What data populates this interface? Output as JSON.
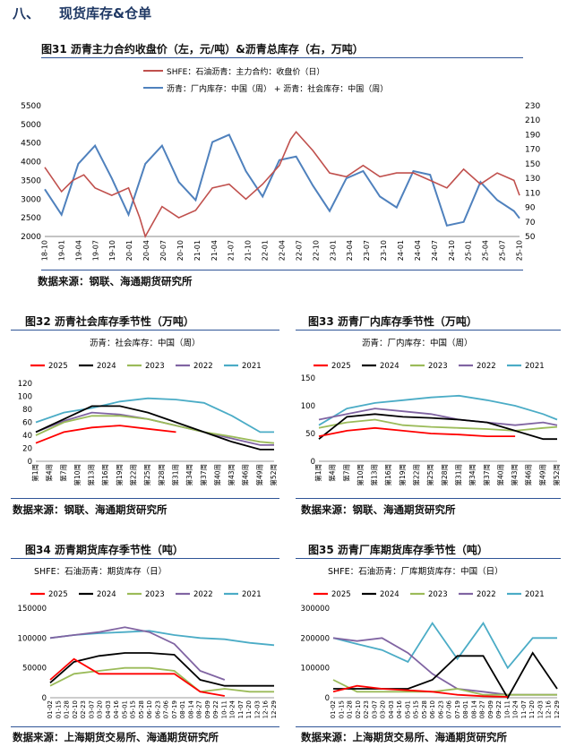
{
  "section": {
    "number": "八、",
    "title": "现货库存&仓单"
  },
  "figures": [
    {
      "id": "fig31",
      "caption": "图31  沥青主力合约收盘价（左，元/吨）&沥青总库存（右，万吨）",
      "source": "数据来源：钢联、海通期货研究所"
    },
    {
      "id": "fig32",
      "caption": "图32  沥青社会库存季节性（万吨）",
      "source": "数据来源：钢联、海通期货研究所"
    },
    {
      "id": "fig33",
      "caption": "图33  沥青厂内库存季节性（万吨）",
      "source": "数据来源：钢联、海通期货研究所"
    },
    {
      "id": "fig34",
      "caption": "图34  沥青期货库存季节性（吨）",
      "source": "数据来源：上海期货交易所、海通期货研究所"
    },
    {
      "id": "fig35",
      "caption": "图35  沥青厂库期货库存季节性（吨）",
      "source": "数据来源：上海期货交易所、海通期货研究所"
    }
  ],
  "colors": {
    "y2025": "#ff0000",
    "y2024": "#000000",
    "y2023": "#9bbb59",
    "y2022": "#8064a2",
    "y2021": "#4bacc6",
    "price": "#c0504d",
    "inventory": "#4f81bd",
    "rule": "#2f5496"
  },
  "chart_data": [
    {
      "id": "fig31",
      "type": "line",
      "series": [
        {
          "name": "SHFE：石油沥青：主力合约：收盘价（日）",
          "axis": "left",
          "x": [
            "2018-10",
            "2019-01",
            "2019-03",
            "2019-05",
            "2019-07",
            "2019-10",
            "2020-01",
            "2020-03",
            "2020-04",
            "2020-07",
            "2020-10",
            "2021-01",
            "2021-04",
            "2021-07",
            "2021-10",
            "2022-01",
            "2022-04",
            "2022-06",
            "2022-07",
            "2022-10",
            "2023-01",
            "2023-04",
            "2023-07",
            "2023-10",
            "2024-01",
            "2024-04",
            "2024-07",
            "2024-10",
            "2025-01",
            "2025-04",
            "2025-07",
            "2025-10",
            "2025-11"
          ],
          "values": [
            3850,
            3200,
            3500,
            3650,
            3300,
            3100,
            3300,
            2500,
            2000,
            2800,
            2500,
            2700,
            3300,
            3400,
            3000,
            3400,
            3900,
            4600,
            4800,
            4300,
            3700,
            3600,
            3900,
            3600,
            3700,
            3700,
            3500,
            3300,
            3800,
            3400,
            3700,
            3500,
            3100
          ]
        },
        {
          "name": "沥青：厂内库存：中国（周） + 沥青：社会库存：中国（周）",
          "axis": "right",
          "x": [
            "2018-10",
            "2019-01",
            "2019-04",
            "2019-07",
            "2019-10",
            "2020-01",
            "2020-04",
            "2020-07",
            "2020-10",
            "2021-01",
            "2021-04",
            "2021-07",
            "2021-10",
            "2022-01",
            "2022-04",
            "2022-07",
            "2022-10",
            "2023-01",
            "2023-04",
            "2023-07",
            "2023-10",
            "2024-01",
            "2024-04",
            "2024-07",
            "2024-10",
            "2025-01",
            "2025-04",
            "2025-07",
            "2025-10",
            "2025-11"
          ],
          "values": [
            115,
            80,
            150,
            175,
            130,
            80,
            150,
            175,
            125,
            100,
            180,
            190,
            140,
            105,
            155,
            160,
            120,
            85,
            130,
            140,
            105,
            90,
            140,
            135,
            65,
            70,
            125,
            100,
            85,
            75
          ]
        }
      ],
      "left_ylim": [
        2000,
        5500
      ],
      "left_ticks": [
        2000,
        2500,
        3000,
        3500,
        4000,
        4500,
        5000,
        5500
      ],
      "right_ylim": [
        50,
        230
      ],
      "right_ticks": [
        50,
        70,
        90,
        110,
        130,
        150,
        170,
        190,
        210,
        230
      ],
      "x_ticks": [
        "18-10",
        "19-01",
        "19-04",
        "19-07",
        "19-10",
        "20-01",
        "20-04",
        "20-07",
        "20-10",
        "21-01",
        "21-04",
        "21-07",
        "21-10",
        "22-01",
        "22-04",
        "22-07",
        "22-10",
        "23-01",
        "23-04",
        "23-07",
        "23-10",
        "24-01",
        "24-04",
        "24-07",
        "24-10",
        "25-01",
        "25-04",
        "25-07",
        "25-10"
      ]
    },
    {
      "id": "fig32",
      "type": "line",
      "subtitle": "沥青：社会库存：中国（周）",
      "x": [
        1,
        7,
        13,
        19,
        25,
        31,
        37,
        43,
        49,
        52
      ],
      "series": [
        {
          "name": "2025",
          "values": [
            28,
            45,
            52,
            55,
            50,
            45,
            null,
            null,
            null,
            null
          ]
        },
        {
          "name": "2024",
          "values": [
            45,
            65,
            85,
            85,
            75,
            60,
            45,
            30,
            18,
            18
          ]
        },
        {
          "name": "2023",
          "values": [
            40,
            60,
            70,
            70,
            65,
            55,
            45,
            38,
            30,
            28
          ]
        },
        {
          "name": "2022",
          "values": [
            45,
            62,
            75,
            72,
            65,
            55,
            45,
            35,
            25,
            25
          ]
        },
        {
          "name": "2021",
          "values": [
            60,
            75,
            82,
            92,
            97,
            95,
            90,
            70,
            45,
            45
          ]
        }
      ],
      "ylim": [
        0,
        120
      ],
      "y_ticks": [
        0,
        20,
        40,
        60,
        80,
        100,
        120
      ],
      "x_ticks": [
        "第1周",
        "第4周",
        "第7周",
        "第10周",
        "第13周",
        "第16周",
        "第19周",
        "第22周",
        "第25周",
        "第28周",
        "第31周",
        "第34周",
        "第37周",
        "第40周",
        "第43周",
        "第46周",
        "第49周",
        "第52周"
      ]
    },
    {
      "id": "fig33",
      "type": "line",
      "subtitle": "沥青：厂内库存：中国（周）",
      "x": [
        1,
        7,
        13,
        19,
        25,
        31,
        37,
        43,
        49,
        52
      ],
      "series": [
        {
          "name": "2025",
          "values": [
            45,
            55,
            60,
            55,
            50,
            48,
            45,
            45,
            null,
            null
          ]
        },
        {
          "name": "2024",
          "values": [
            40,
            80,
            85,
            80,
            78,
            75,
            70,
            55,
            40,
            40
          ]
        },
        {
          "name": "2023",
          "values": [
            60,
            70,
            75,
            65,
            62,
            60,
            58,
            55,
            60,
            62
          ]
        },
        {
          "name": "2022",
          "values": [
            75,
            85,
            95,
            90,
            85,
            75,
            70,
            65,
            70,
            65
          ]
        },
        {
          "name": "2021",
          "values": [
            65,
            95,
            105,
            110,
            115,
            118,
            110,
            100,
            85,
            75
          ]
        }
      ],
      "ylim": [
        0,
        150
      ],
      "y_ticks": [
        0,
        50,
        100,
        150
      ],
      "x_ticks": [
        "第1周",
        "第4周",
        "第7周",
        "第10周",
        "第13周",
        "第16周",
        "第19周",
        "第22周",
        "第25周",
        "第28周",
        "第31周",
        "第34周",
        "第37周",
        "第40周",
        "第43周",
        "第46周",
        "第49周",
        "第52周"
      ]
    },
    {
      "id": "fig34",
      "type": "line",
      "subtitle": "SHFE：石油沥青：期货库存（日）",
      "x": [
        "01-02",
        "02-10",
        "03-20",
        "05-01",
        "06-10",
        "07-20",
        "09-01",
        "10-10",
        "11-20",
        "12-29"
      ],
      "series": [
        {
          "name": "2025",
          "values": [
            30000,
            65000,
            40000,
            40000,
            40000,
            40000,
            10000,
            3000,
            null,
            null
          ]
        },
        {
          "name": "2024",
          "values": [
            25000,
            60000,
            70000,
            75000,
            75000,
            72000,
            30000,
            20000,
            20000,
            20000
          ]
        },
        {
          "name": "2023",
          "values": [
            20000,
            40000,
            45000,
            50000,
            50000,
            45000,
            10000,
            15000,
            10000,
            10000
          ]
        },
        {
          "name": "2022",
          "values": [
            100000,
            105000,
            110000,
            118000,
            110000,
            90000,
            45000,
            30000,
            null,
            null
          ]
        },
        {
          "name": "2021",
          "values": [
            100000,
            105000,
            108000,
            110000,
            112000,
            105000,
            100000,
            98000,
            92000,
            88000
          ]
        }
      ],
      "ylim": [
        0,
        150000
      ],
      "y_ticks": [
        0,
        50000,
        100000,
        150000
      ],
      "x_ticks": [
        "01-02",
        "01-15",
        "01-28",
        "02-10",
        "02-23",
        "03-07",
        "03-20",
        "04-03",
        "04-16",
        "05-01",
        "05-15",
        "05-28",
        "06-10",
        "06-23",
        "07-06",
        "07-19",
        "08-01",
        "08-14",
        "08-27",
        "09-09",
        "09-22",
        "10-11",
        "10-24",
        "11-07",
        "11-20",
        "12-03",
        "12-16",
        "12-29"
      ]
    },
    {
      "id": "fig35",
      "type": "line",
      "subtitle": "SHFE：石油沥青：厂库期货库存：中国（日）",
      "x": [
        "01-02",
        "02-10",
        "03-20",
        "05-01",
        "06-10",
        "07-20",
        "09-01",
        "10-10",
        "11-20",
        "12-29"
      ],
      "series": [
        {
          "name": "2025",
          "values": [
            20000,
            40000,
            30000,
            25000,
            20000,
            10000,
            5000,
            3000,
            null,
            null
          ]
        },
        {
          "name": "2024",
          "values": [
            30000,
            30000,
            30000,
            30000,
            60000,
            140000,
            140000,
            0,
            150000,
            30000
          ]
        },
        {
          "name": "2023",
          "values": [
            60000,
            20000,
            20000,
            20000,
            20000,
            30000,
            10000,
            10000,
            10000,
            10000
          ]
        },
        {
          "name": "2022",
          "values": [
            200000,
            190000,
            200000,
            150000,
            80000,
            30000,
            20000,
            10000,
            10000,
            10000
          ]
        },
        {
          "name": "2021",
          "values": [
            200000,
            180000,
            160000,
            120000,
            250000,
            130000,
            250000,
            100000,
            200000,
            200000
          ]
        }
      ],
      "ylim": [
        0,
        300000
      ],
      "y_ticks": [
        0,
        100000,
        200000,
        300000
      ],
      "x_ticks": [
        "01-02",
        "01-15",
        "01-28",
        "02-10",
        "02-23",
        "03-07",
        "03-20",
        "04-03",
        "04-16",
        "05-01",
        "05-15",
        "05-28",
        "06-10",
        "06-23",
        "07-06",
        "07-19",
        "08-01",
        "08-14",
        "08-27",
        "09-09",
        "09-22",
        "10-11",
        "10-24",
        "11-07",
        "11-20",
        "12-03",
        "12-16",
        "12-29"
      ]
    }
  ]
}
